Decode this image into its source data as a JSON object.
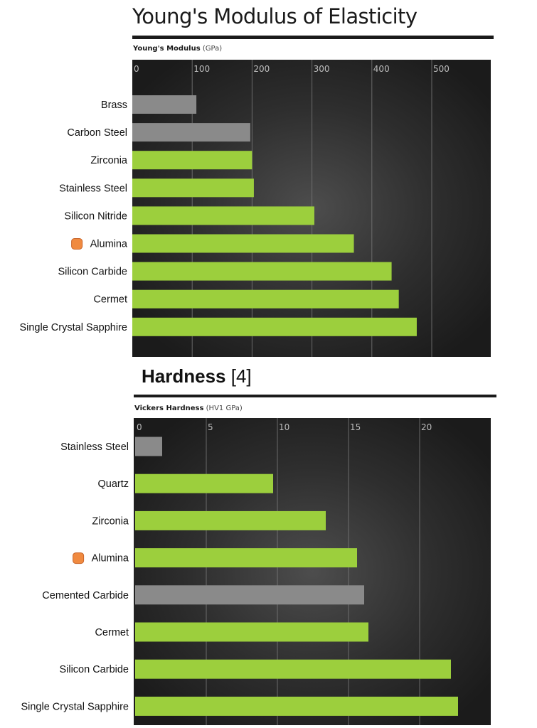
{
  "page": {
    "top_title": "Young's Modulus of Elasticity",
    "second_title": "Hardness",
    "second_title_ref": "[4]"
  },
  "colors": {
    "green": "#9ccf3d",
    "gray": "#8a8a8a",
    "marker": "#f08a40",
    "panel_dark": "#1e1e1e",
    "panel_light": "#4a4a4a"
  },
  "chart_data": [
    {
      "type": "bar",
      "orientation": "horizontal",
      "title": "Young's Modulus of Elasticity",
      "xlabel": "Young's Modulus",
      "xlabel_unit": "(GPa)",
      "xlim": [
        0,
        600
      ],
      "xticks": [
        0,
        100,
        200,
        300,
        400,
        500
      ],
      "grid": true,
      "categories": [
        "Brass",
        "Carbon Steel",
        "Zirconia",
        "Stainless Steel",
        "Silicon Nitride",
        "Alumina",
        "Silicon Carbide",
        "Cermet",
        "Single Crystal Sapphire"
      ],
      "values": [
        107,
        197,
        200,
        203,
        304,
        370,
        433,
        445,
        475
      ],
      "bar_colors": [
        "gray",
        "gray",
        "green",
        "green",
        "green",
        "green",
        "green",
        "green",
        "green"
      ],
      "highlighted": "Alumina"
    },
    {
      "type": "bar",
      "orientation": "horizontal",
      "title": "Hardness",
      "xlabel": "Vickers Hardness",
      "xlabel_unit": "(HV1 GPa)",
      "xlim": [
        0,
        25
      ],
      "xticks": [
        0,
        5,
        10,
        15,
        20
      ],
      "grid": true,
      "categories": [
        "Stainless Steel",
        "Quartz",
        "Zirconia",
        "Alumina",
        "Cemented Carbide",
        "Cermet",
        "Silicon Carbide",
        "Single Crystal Sapphire"
      ],
      "values": [
        1.9,
        9.7,
        13.4,
        15.6,
        16.1,
        16.4,
        22.2,
        22.7
      ],
      "bar_colors": [
        "gray",
        "green",
        "green",
        "green",
        "gray",
        "green",
        "green",
        "green"
      ],
      "highlighted": "Alumina"
    }
  ]
}
